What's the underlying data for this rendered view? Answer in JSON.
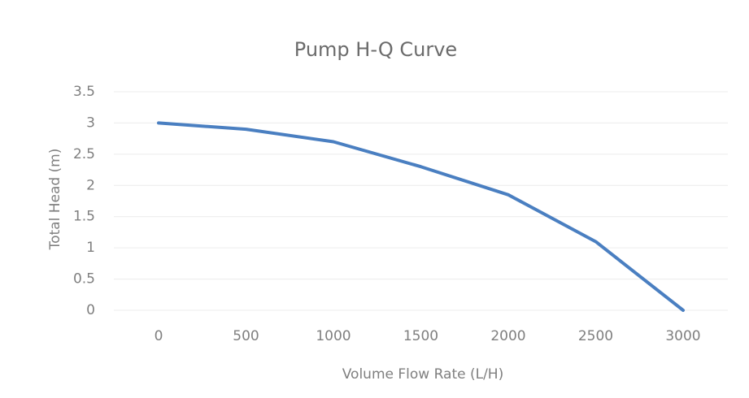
{
  "chart_data": {
    "type": "line",
    "title": "Pump H-Q Curve",
    "x_label": "Volume Flow Rate (L/H)",
    "y_label": "Total Head (m)",
    "x": [
      0,
      500,
      1000,
      1500,
      2000,
      2500,
      3000
    ],
    "series": [
      {
        "name": "Total Head",
        "color": "#4a7fc1",
        "values": [
          3.0,
          2.9,
          2.7,
          2.3,
          1.85,
          1.1,
          0.0
        ]
      }
    ],
    "xlim": [
      0,
      3000
    ],
    "xticks": [
      0,
      500,
      1000,
      1500,
      2000,
      2500,
      3000
    ],
    "ylim": [
      0,
      3.5
    ],
    "yticks": [
      0,
      0.5,
      1,
      1.5,
      2,
      2.5,
      3,
      3.5
    ],
    "grid": true
  }
}
